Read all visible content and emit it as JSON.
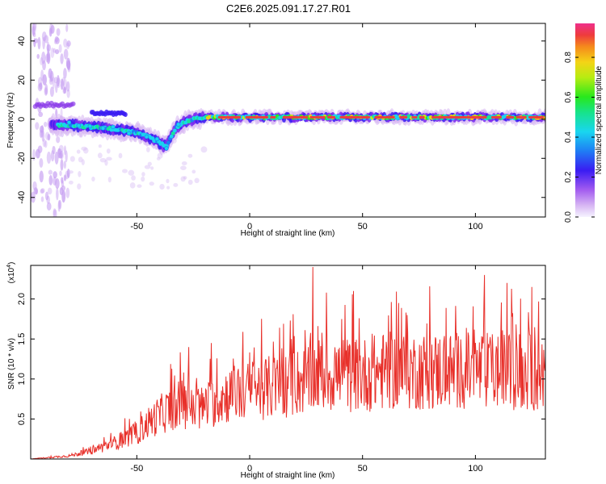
{
  "title": "C2E6.2025.091.17.27.R01",
  "chart_data": [
    {
      "type": "heatmap",
      "xlabel": "Height of straight line (km)",
      "ylabel": "Frequency (Hz)",
      "xlim": [
        -97,
        131
      ],
      "ylim": [
        -50,
        49
      ],
      "xticks": [
        -50,
        0,
        50,
        100
      ],
      "yticks": [
        -40,
        -20,
        0,
        20,
        40
      ],
      "colorbar": {
        "label": "Normalized spectral amplitude",
        "range": [
          0,
          0.97
        ],
        "ticks": [
          0.0,
          0.2,
          0.4,
          0.6,
          0.8
        ],
        "ticklabels": [
          "0.0",
          "0.2",
          "0.4",
          "0.6",
          "0.8"
        ]
      },
      "ridge": {
        "x": [
          -88,
          -80,
          -70,
          -60,
          -50,
          -45,
          -40,
          -37,
          -35,
          -33,
          -30,
          -25,
          -20,
          -10,
          0,
          20,
          50,
          100,
          131
        ],
        "y": [
          -3,
          -3,
          -4,
          -5,
          -7,
          -9,
          -12,
          -14,
          -9,
          -5,
          -2,
          0,
          1,
          1,
          1,
          1,
          1,
          1,
          1
        ]
      }
    },
    {
      "type": "line",
      "xlabel": "Height of straight line (km)",
      "ylabel": "SNR (10 * v/v)",
      "y_multiplier": "(x10",
      "y_multiplier_exp": "4",
      "y_multiplier_close": ")",
      "xlim": [
        -97,
        131
      ],
      "ylim": [
        0,
        2.42
      ],
      "xticks": [
        -50,
        0,
        50,
        100
      ],
      "yticks": [
        0.5,
        1.0,
        1.5,
        2.0
      ],
      "yticklabels": [
        "0.5",
        "1.0",
        "1.5",
        "2.0"
      ],
      "line_color": "#e8302a",
      "envelope": {
        "x": [
          -97,
          -80,
          -70,
          -60,
          -50,
          -45,
          -40,
          -30,
          -25,
          -20,
          -10,
          0,
          10,
          20,
          30,
          40,
          50,
          60,
          80,
          100,
          120,
          131
        ],
        "y": [
          0.0,
          0.04,
          0.1,
          0.2,
          0.32,
          0.45,
          0.55,
          0.7,
          0.6,
          0.65,
          0.8,
          0.85,
          0.9,
          0.95,
          1.05,
          1.05,
          1.05,
          1.1,
          1.1,
          1.1,
          1.1,
          1.05
        ]
      },
      "peaks": [
        {
          "x": 28,
          "y": 2.4
        },
        {
          "x": -27,
          "y": 1.4
        },
        {
          "x": -17,
          "y": 1.45
        },
        {
          "x": 104,
          "y": 2.3
        },
        {
          "x": 114,
          "y": 2.2
        },
        {
          "x": 125,
          "y": 2.15
        },
        {
          "x": 66,
          "y": 1.95
        }
      ]
    }
  ]
}
